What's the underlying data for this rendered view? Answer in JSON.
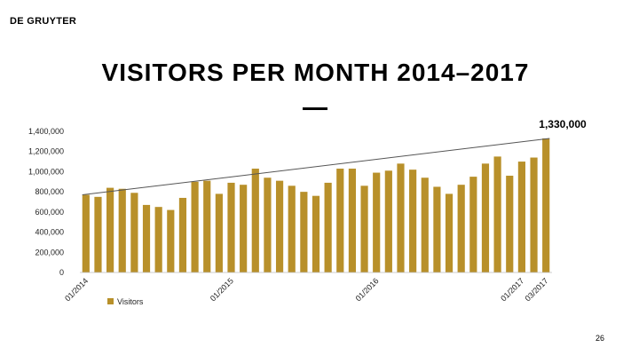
{
  "brand": "DE GRUYTER",
  "slide_title": "VISITORS PER MONTH 2014–2017",
  "page_number": "26",
  "bar_color": "#B8902A",
  "chart_data": {
    "type": "bar",
    "categories": [
      "01/2014",
      "02/2014",
      "03/2014",
      "04/2014",
      "05/2014",
      "06/2014",
      "07/2014",
      "08/2014",
      "09/2014",
      "10/2014",
      "11/2014",
      "12/2014",
      "01/2015",
      "02/2015",
      "03/2015",
      "04/2015",
      "05/2015",
      "06/2015",
      "07/2015",
      "08/2015",
      "09/2015",
      "10/2015",
      "11/2015",
      "12/2015",
      "01/2016",
      "02/2016",
      "03/2016",
      "04/2016",
      "05/2016",
      "06/2016",
      "07/2016",
      "08/2016",
      "09/2016",
      "10/2016",
      "11/2016",
      "12/2016",
      "01/2017",
      "02/2017",
      "03/2017"
    ],
    "x_tick_labels": [
      {
        "label": "01/2014",
        "index": 0
      },
      {
        "label": "01/2015",
        "index": 12
      },
      {
        "label": "01/2016",
        "index": 24
      },
      {
        "label": "01/2017",
        "index": 36
      },
      {
        "label": "03/2017",
        "index": 38
      }
    ],
    "series": [
      {
        "name": "Visitors",
        "values": [
          770000,
          750000,
          840000,
          830000,
          790000,
          670000,
          650000,
          620000,
          740000,
          900000,
          910000,
          780000,
          890000,
          870000,
          1030000,
          940000,
          910000,
          860000,
          800000,
          760000,
          890000,
          1030000,
          1030000,
          860000,
          990000,
          1010000,
          1080000,
          1020000,
          940000,
          850000,
          780000,
          870000,
          950000,
          1080000,
          1150000,
          960000,
          1100000,
          1140000,
          1330000
        ]
      }
    ],
    "trendline": {
      "start": 770000,
      "end": 1330000
    },
    "ylim": [
      0,
      1400000
    ],
    "yticks": [
      0,
      200000,
      400000,
      600000,
      800000,
      1000000,
      1200000,
      1400000
    ],
    "ytick_labels": [
      "0",
      "200,000",
      "400,000",
      "600,000",
      "800,000",
      "1,000,000",
      "1,200,000",
      "1,400,000"
    ],
    "annotation": "1,330,000",
    "legend_position": "bottom-left",
    "grid": false
  }
}
